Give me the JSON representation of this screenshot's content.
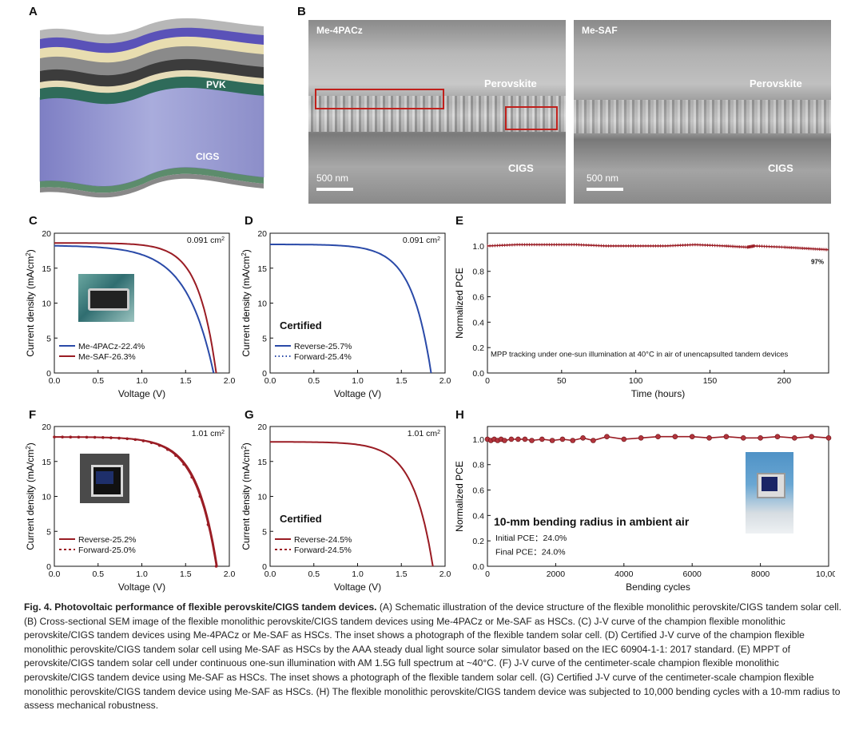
{
  "panels": {
    "A": {
      "letter": "A",
      "layers": [
        "PVK",
        "CIGS"
      ]
    },
    "B": {
      "letter": "B",
      "left": {
        "label": "Me-4PACz",
        "layer_top": "Perovskite",
        "layer_bottom": "CIGS",
        "scale": "500 nm"
      },
      "right": {
        "label": "Me-SAF",
        "layer_top": "Perovskite",
        "layer_bottom": "CIGS",
        "scale": "500 nm"
      }
    },
    "C": {
      "letter": "C"
    },
    "D": {
      "letter": "D"
    },
    "E": {
      "letter": "E"
    },
    "F": {
      "letter": "F"
    },
    "G": {
      "letter": "G"
    },
    "H": {
      "letter": "H"
    }
  },
  "chart_data": [
    {
      "id": "C",
      "type": "line",
      "area": "0.091 cm",
      "area_sup": "2",
      "xlabel": "Voltage (V)",
      "ylabel": "Current density (mA/cm",
      "ylabel_sup": "2",
      "ylabel_end": ")",
      "xlim": [
        0,
        2
      ],
      "ylim": [
        0,
        20
      ],
      "xticks": [
        "0.0",
        "0.5",
        "1.0",
        "1.5",
        "2.0"
      ],
      "yticks": [
        "0",
        "5",
        "10",
        "15",
        "20"
      ],
      "series": [
        {
          "name": "Me-4PACz-22.4%",
          "color": "#2a4aa8",
          "voc": 1.82,
          "jsc": 18.2,
          "n": 2.4,
          "style": "solid"
        },
        {
          "name": "Me-SAF-26.3%",
          "color": "#9a1c24",
          "voc": 1.85,
          "jsc": 18.6,
          "n": 1.55,
          "style": "solid"
        }
      ]
    },
    {
      "id": "D",
      "type": "line",
      "area": "0.091 cm",
      "area_sup": "2",
      "annotation": "Certified",
      "xlabel": "Voltage (V)",
      "ylabel": "Current density (mA/cm",
      "ylabel_sup": "2",
      "ylabel_end": ")",
      "xlim": [
        0,
        2
      ],
      "ylim": [
        0,
        20
      ],
      "xticks": [
        "0.0",
        "0.5",
        "1.0",
        "1.5",
        "2.0"
      ],
      "yticks": [
        "0",
        "5",
        "10",
        "15",
        "20"
      ],
      "series": [
        {
          "name": "Reverse-25.7%",
          "color": "#2a4aa8",
          "voc": 1.84,
          "jsc": 18.4,
          "n": 1.7,
          "style": "solid"
        },
        {
          "name": "Forward-25.4%",
          "color": "#2a4aa8",
          "voc": 1.84,
          "jsc": 18.4,
          "n": 1.7,
          "style": "dotted"
        }
      ]
    },
    {
      "id": "E",
      "type": "line",
      "annotation": "MPP tracking under one-sun illumination at 40°C in air of unencapsulted tandem devices",
      "end_label": "97%",
      "xlabel": "Time (hours)",
      "ylabel": "Normalized PCE",
      "xlim": [
        0,
        230
      ],
      "ylim": [
        0,
        1.1
      ],
      "xticks": [
        "0",
        "50",
        "100",
        "150",
        "200"
      ],
      "xtick_values": [
        0,
        50,
        100,
        150,
        200
      ],
      "yticks": [
        "0.0",
        "0.2",
        "0.4",
        "0.6",
        "0.8",
        "1.0"
      ],
      "ytick_values": [
        0,
        0.2,
        0.4,
        0.6,
        0.8,
        1.0
      ],
      "series": [
        {
          "color": "#9a1c24",
          "x": [
            0,
            20,
            40,
            60,
            80,
            100,
            120,
            140,
            160,
            175,
            180,
            200,
            215,
            230
          ],
          "y": [
            1.0,
            1.01,
            1.01,
            1.01,
            1.0,
            1.0,
            1.0,
            1.01,
            1.0,
            0.99,
            1.0,
            0.99,
            0.98,
            0.97
          ]
        }
      ]
    },
    {
      "id": "F",
      "type": "line",
      "area": "1.01 cm",
      "area_sup": "2",
      "xlabel": "Voltage (V)",
      "ylabel": "Current density (mA/cm",
      "ylabel_sup": "2",
      "ylabel_end": ")",
      "xlim": [
        0,
        2
      ],
      "ylim": [
        0,
        20
      ],
      "xticks": [
        "0.0",
        "0.5",
        "1.0",
        "1.5",
        "2.0"
      ],
      "yticks": [
        "0",
        "5",
        "10",
        "15",
        "20"
      ],
      "series": [
        {
          "name": "Reverse-25.2%",
          "color": "#9a1c24",
          "voc": 1.86,
          "jsc": 18.5,
          "n": 1.75,
          "style": "solid"
        },
        {
          "name": "Forward-25.0%",
          "color": "#9a1c24",
          "voc": 1.85,
          "jsc": 18.5,
          "n": 1.8,
          "style": "dots"
        }
      ]
    },
    {
      "id": "G",
      "type": "line",
      "area": "1.01 cm",
      "area_sup": "2",
      "annotation": "Certified",
      "xlabel": "Voltage (V)",
      "ylabel": "Current density (mA/cm",
      "ylabel_sup": "2",
      "ylabel_end": ")",
      "xlim": [
        0,
        2
      ],
      "ylim": [
        0,
        20
      ],
      "xticks": [
        "0.0",
        "0.5",
        "1.0",
        "1.5",
        "2.0"
      ],
      "yticks": [
        "0",
        "5",
        "10",
        "15",
        "20"
      ],
      "series": [
        {
          "name": "Reverse-24.5%",
          "color": "#9a1c24",
          "voc": 1.86,
          "jsc": 17.8,
          "n": 1.7,
          "style": "solid"
        },
        {
          "name": "Forward-24.5%",
          "color": "#9a1c24",
          "voc": 1.86,
          "jsc": 17.8,
          "n": 1.7,
          "style": "dashed"
        }
      ]
    },
    {
      "id": "H",
      "type": "line",
      "annotation": "10-mm bending radius in ambient air",
      "note1": "Initial PCE：24.0%",
      "note2": "Final PCE：24.0%",
      "xlabel": "Bending cycles",
      "ylabel": "Normalized PCE",
      "xlim": [
        0,
        10000
      ],
      "ylim": [
        0,
        1.1
      ],
      "xticks": [
        "0",
        "2000",
        "4000",
        "6000",
        "8000",
        "10,000"
      ],
      "xtick_values": [
        0,
        2000,
        4000,
        6000,
        8000,
        10000
      ],
      "yticks": [
        "0.0",
        "0.2",
        "0.4",
        "0.6",
        "0.8",
        "1.0"
      ],
      "ytick_values": [
        0,
        0.2,
        0.4,
        0.6,
        0.8,
        1.0
      ],
      "series": [
        {
          "color": "#9a1c24",
          "x": [
            0,
            100,
            200,
            300,
            400,
            500,
            700,
            900,
            1100,
            1300,
            1600,
            1900,
            2200,
            2500,
            2800,
            3100,
            3500,
            4000,
            4500,
            5000,
            5500,
            6000,
            6500,
            7000,
            7500,
            8000,
            8500,
            9000,
            9500,
            10000
          ],
          "y": [
            1.0,
            0.99,
            1.0,
            0.99,
            1.0,
            0.99,
            1.0,
            1.0,
            1.0,
            0.99,
            1.0,
            0.99,
            1.0,
            0.99,
            1.01,
            0.99,
            1.02,
            1.0,
            1.01,
            1.02,
            1.02,
            1.02,
            1.01,
            1.02,
            1.01,
            1.01,
            1.02,
            1.01,
            1.02,
            1.01
          ]
        }
      ]
    }
  ],
  "caption": {
    "lead": "Fig. 4. Photovoltaic performance of flexible perovskite/CIGS tandem devices.",
    "body": " (A) Schematic illustration of the device structure of the flexible monolithic perovskite/CIGS tandem solar cell. (B) Cross-sectional SEM image of the flexible monolithic perovskite/CIGS tandem devices using Me-4PACz or Me-SAF as HSCs. (C) J-V curve of the champion flexible monolithic perovskite/CIGS tandem devices using Me-4PACz or Me-SAF as HSCs. The inset shows a photograph of the flexible tandem solar cell. (D) Certified J-V curve of the champion flexible monolithic perovskite/CIGS tandem solar cell using Me-SAF as HSCs by the AAA steady dual light source solar simulator based on the IEC 60904-1-1: 2017 standard. (E) MPPT of perovskite/CIGS tandem solar cell under continuous one-sun illumination with AM 1.5G full spectrum at ~40°C. (F) J-V curve of the centimeter-scale champion flexible monolithic perovskite/CIGS tandem device using Me-SAF as HSCs. The inset shows a photograph of the flexible tandem solar cell. (G) Certified J-V curve of the centimeter-scale champion flexible monolithic perovskite/CIGS tandem device using Me-SAF as HSCs. (H) The flexible monolithic perovskite/CIGS tandem device was subjected to 10,000 bending cycles with a 10-mm radius to assess mechanical robustness."
  }
}
